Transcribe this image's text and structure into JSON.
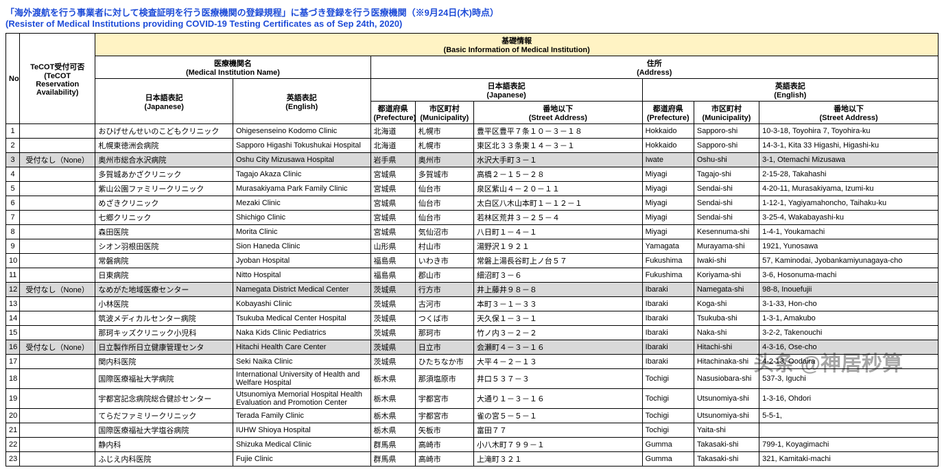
{
  "title_jp": "「海外渡航を行う事業者に対して検査証明を行う医療機関の登録規程」に基づき登録を行う医療機関（※9月24日(木)時点）",
  "title_en": "(Resister of Medical Institutions providing COVID-19 Testing Certificates  as of Sep 24th, 2020)",
  "headers": {
    "no": "No",
    "tecot": "TeCOT受付可否\n(TeCOT Reservation Availability)",
    "basic_info_jp": "基礎情報",
    "basic_info_en": "(Basic Information of Medical Institution)",
    "name_jp": "医療機関名",
    "name_en": "(Medical Institution Name)",
    "addr_jp": "住所",
    "addr_en": "(Address)",
    "lang_jp_jp": "日本語表記",
    "lang_jp_en": "(Japanese)",
    "lang_en_jp": "英語表記",
    "lang_en_en": "(English)",
    "pref_jp": "都道府県",
    "pref_en": "(Prefecture)",
    "muni_jp": "市区町村",
    "muni_en": "(Municipality)",
    "street_jp": "番地以下",
    "street_en": "(Street Address)"
  },
  "tecot_none": "受付なし（None）",
  "rows": [
    {
      "no": "1",
      "shaded": false,
      "tecot": "",
      "name_jp": "おひげせんせいのこどもクリニック",
      "name_en": "Ohigesenseino Kodomo Clinic",
      "pref_jp": "北海道",
      "muni_jp": "札幌市",
      "street_jp": "豊平区豊平７条１０－３－１８",
      "pref_en": "Hokkaido",
      "muni_en": "Sapporo-shi",
      "street_en": "10-3-18, Toyohira 7, Toyohira-ku"
    },
    {
      "no": "2",
      "shaded": false,
      "tecot": "",
      "name_jp": "札幌東徳洲会病院",
      "name_en": "Sapporo Higashi Tokushukai Hospital",
      "pref_jp": "北海道",
      "muni_jp": "札幌市",
      "street_jp": "東区北３３条東１４－３－１",
      "pref_en": "Hokkaido",
      "muni_en": "Sapporo-shi",
      "street_en": "14-3-1, Kita 33 Higashi, Higashi-ku"
    },
    {
      "no": "3",
      "shaded": true,
      "tecot": "受付なし（None）",
      "name_jp": "奥州市総合水沢病院",
      "name_en": "Oshu City Mizusawa Hospital",
      "pref_jp": "岩手県",
      "muni_jp": "奥州市",
      "street_jp": "水沢大手町３－１",
      "pref_en": "Iwate",
      "muni_en": "Oshu-shi",
      "street_en": "3-1, Otemachi Mizusawa"
    },
    {
      "no": "4",
      "shaded": false,
      "tecot": "",
      "name_jp": "多賀城あかざクリニック",
      "name_en": "Tagajo Akaza Clinic",
      "pref_jp": "宮城県",
      "muni_jp": "多賀城市",
      "street_jp": "高橋２－１５－２８",
      "pref_en": "Miyagi",
      "muni_en": "Tagajo-shi",
      "street_en": "2-15-28, Takahashi"
    },
    {
      "no": "5",
      "shaded": false,
      "tecot": "",
      "name_jp": "紫山公園ファミリークリニック",
      "name_en": "Murasakiyama Park Family Clinic",
      "pref_jp": "宮城県",
      "muni_jp": "仙台市",
      "street_jp": "泉区紫山４－２０－１１",
      "pref_en": "Miyagi",
      "muni_en": "Sendai-shi",
      "street_en": "4-20-11, Murasakiyama, Izumi-ku"
    },
    {
      "no": "6",
      "shaded": false,
      "tecot": "",
      "name_jp": "めざきクリニック",
      "name_en": "Mezaki Clinic",
      "pref_jp": "宮城県",
      "muni_jp": "仙台市",
      "street_jp": "太白区八木山本町１－１２－１",
      "pref_en": "Miyagi",
      "muni_en": "Sendai-shi",
      "street_en": "1-12-1, Yagiyamahoncho, Taihaku-ku"
    },
    {
      "no": "7",
      "shaded": false,
      "tecot": "",
      "name_jp": "七郷クリニック",
      "name_en": "Shichigo Clinic",
      "pref_jp": "宮城県",
      "muni_jp": "仙台市",
      "street_jp": "若林区荒井３－２５－４",
      "pref_en": "Miyagi",
      "muni_en": "Sendai-shi",
      "street_en": "3-25-4, Wakabayashi-ku"
    },
    {
      "no": "8",
      "shaded": false,
      "tecot": "",
      "name_jp": "森田医院",
      "name_en": "Morita Clinic",
      "pref_jp": "宮城県",
      "muni_jp": "気仙沼市",
      "street_jp": "八日町１－４－１",
      "pref_en": "Miyagi",
      "muni_en": "Kesennuma-shi",
      "street_en": "1-4-1, Youkamachi"
    },
    {
      "no": "9",
      "shaded": false,
      "tecot": "",
      "name_jp": "シオン羽根田医院",
      "name_en": "Sion Haneda Clinic",
      "pref_jp": "山形県",
      "muni_jp": "村山市",
      "street_jp": "湯野沢１９２１",
      "pref_en": "Yamagata",
      "muni_en": "Murayama-shi",
      "street_en": "1921, Yunosawa"
    },
    {
      "no": "10",
      "shaded": false,
      "tecot": "",
      "name_jp": "常磐病院",
      "name_en": "Jyoban Hospital",
      "pref_jp": "福島県",
      "muni_jp": "いわき市",
      "street_jp": "常磐上湯長谷町上ノ台５７",
      "pref_en": "Fukushima",
      "muni_en": "Iwaki-shi",
      "street_en": "57, Kaminodai, Jyobankamiyunagaya-cho"
    },
    {
      "no": "11",
      "shaded": false,
      "tecot": "",
      "name_jp": "日東病院",
      "name_en": "Nitto Hospital",
      "pref_jp": "福島県",
      "muni_jp": "郡山市",
      "street_jp": "細沼町３－６",
      "pref_en": "Fukushima",
      "muni_en": "Koriyama-shi",
      "street_en": "3-6, Hosonuma-machi"
    },
    {
      "no": "12",
      "shaded": true,
      "tecot": "受付なし（None）",
      "name_jp": "なめがた地域医療センター",
      "name_en": "Namegata District Medical Center",
      "pref_jp": "茨城県",
      "muni_jp": "行方市",
      "street_jp": "井上藤井９８－８",
      "pref_en": "Ibaraki",
      "muni_en": "Namegata-shi",
      "street_en": "98-8, Inouefujii"
    },
    {
      "no": "13",
      "shaded": false,
      "tecot": "",
      "name_jp": "小林医院",
      "name_en": "Kobayashi Clinic",
      "pref_jp": "茨城県",
      "muni_jp": "古河市",
      "street_jp": "本町３－１－３３",
      "pref_en": "Ibaraki",
      "muni_en": "Koga-shi",
      "street_en": "3-1-33, Hon-cho"
    },
    {
      "no": "14",
      "shaded": false,
      "tecot": "",
      "name_jp": "筑波メディカルセンター病院",
      "name_en": "Tsukuba Medical Center Hospital",
      "pref_jp": "茨城県",
      "muni_jp": "つくば市",
      "street_jp": "天久保１－３－１",
      "pref_en": "Ibaraki",
      "muni_en": "Tsukuba-shi",
      "street_en": "1-3-1, Amakubo"
    },
    {
      "no": "15",
      "shaded": false,
      "tecot": "",
      "name_jp": "那珂キッズクリニック小児科",
      "name_en": "Naka Kids Clinic Pediatrics",
      "pref_jp": "茨城県",
      "muni_jp": "那珂市",
      "street_jp": "竹ノ内３－２－２",
      "pref_en": "Ibaraki",
      "muni_en": "Naka-shi",
      "street_en": "3-2-2, Takenouchi"
    },
    {
      "no": "16",
      "shaded": true,
      "tecot": "受付なし（None）",
      "name_jp": "日立製作所日立健康管理センタ",
      "name_en": "Hitachi Health Care Center",
      "pref_jp": "茨城県",
      "muni_jp": "日立市",
      "street_jp": "会瀬町４－３－１６",
      "pref_en": "Ibaraki",
      "muni_en": "Hitachi-shi",
      "street_en": "4-3-16, Ose-cho"
    },
    {
      "no": "17",
      "shaded": false,
      "tecot": "",
      "name_jp": "関内科医院",
      "name_en": "Seki Naika Clinic",
      "pref_jp": "茨城県",
      "muni_jp": "ひたちなか市",
      "street_jp": "大平４－２－１３",
      "pref_en": "Ibaraki",
      "muni_en": "Hitachinaka-shi",
      "street_en": "4-2-13, Oodaira"
    },
    {
      "no": "18",
      "shaded": false,
      "tecot": "",
      "name_jp": "国際医療福祉大学病院",
      "name_en": "International University of Health and Welfare Hospital",
      "pref_jp": "栃木県",
      "muni_jp": "那須塩原市",
      "street_jp": "井口５３７－３",
      "pref_en": "Tochigi",
      "muni_en": "Nasusiobara-shi",
      "street_en": "537-3, Iguchi"
    },
    {
      "no": "19",
      "shaded": false,
      "tecot": "",
      "name_jp": "宇都宮記念病院総合健診センター",
      "name_en": "Utsunomiya Memorial Hospital Health Evaluation and Promotion Center",
      "pref_jp": "栃木県",
      "muni_jp": "宇都宮市",
      "street_jp": "大通り１－３－１６",
      "pref_en": "Tochigi",
      "muni_en": "Utsunomiya-shi",
      "street_en": "1-3-16, Ohdori"
    },
    {
      "no": "20",
      "shaded": false,
      "tecot": "",
      "name_jp": "てらだファミリークリニック",
      "name_en": "Terada Family Clinic",
      "pref_jp": "栃木県",
      "muni_jp": "宇都宮市",
      "street_jp": "雀の宮５－５－１",
      "pref_en": "Tochigi",
      "muni_en": "Utsunomiya-shi",
      "street_en": "5-5-1,"
    },
    {
      "no": "21",
      "shaded": false,
      "tecot": "",
      "name_jp": "国際医療福祉大学塩谷病院",
      "name_en": "IUHW Shioya Hospital",
      "pref_jp": "栃木県",
      "muni_jp": "矢板市",
      "street_jp": "富田７７",
      "pref_en": "Tochigi",
      "muni_en": "Yaita-shi",
      "street_en": ""
    },
    {
      "no": "22",
      "shaded": false,
      "tecot": "",
      "name_jp": "静内科",
      "name_en": "Shizuka Medical Clinic",
      "pref_jp": "群馬県",
      "muni_jp": "高崎市",
      "street_jp": "小八木町７９９－１",
      "pref_en": "Gumma",
      "muni_en": "Takasaki-shi",
      "street_en": "799-1, Koyagimachi"
    },
    {
      "no": "23",
      "shaded": false,
      "tecot": "",
      "name_jp": "ふじえ内科医院",
      "name_en": "Fujie Clinic",
      "pref_jp": "群馬県",
      "muni_jp": "高崎市",
      "street_jp": "上滝町３２１",
      "pref_en": "Gumma",
      "muni_en": "Takasaki-shi",
      "street_en": "321, Kamitaki-machi"
    }
  ],
  "watermark": "头条 @神居秒算"
}
